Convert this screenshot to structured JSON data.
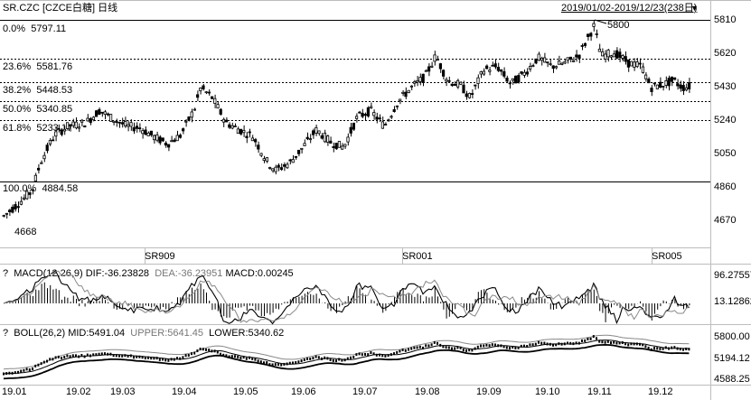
{
  "header": {
    "symbol_title": "SR.CZC [CZCE白糖] 日线",
    "range": "2019/01/02-2019/12/23(238日)",
    "range_arrow": "▼"
  },
  "main_panel": {
    "right_axis": [
      "5810",
      "5620",
      "5430",
      "5240",
      "5050",
      "4860",
      "4670"
    ],
    "fib_levels": [
      {
        "pct": "0.0%",
        "value": "5797.11"
      },
      {
        "pct": "23.6%",
        "value": "5581.76"
      },
      {
        "pct": "38.2%",
        "value": "5448.53"
      },
      {
        "pct": "50.0%",
        "value": "5340.85"
      },
      {
        "pct": "61.8%",
        "value": "5233.17"
      },
      {
        "pct": "100.0%",
        "value": "4884.58"
      }
    ],
    "high_label": "5800",
    "low_label": "4668",
    "contracts": [
      "SR909",
      "SR001",
      "SR005"
    ]
  },
  "macd_panel": {
    "question": "?",
    "name": "MACD(12,26,9)",
    "dif": "DIF:-36.23828",
    "dea": "DEA:-36.23951",
    "macd": "MACD:0.00245",
    "right_axis": [
      "96.27557",
      "13.12862"
    ]
  },
  "boll_panel": {
    "question": "?",
    "name": "BOLL(26,2)",
    "mid": "MID:5491.04",
    "upper": "UPPER:5641.45",
    "lower": "LOWER:5340.62",
    "right_axis": [
      "5800.00",
      "5194.12",
      "4588.25"
    ]
  },
  "date_axis": [
    "19.01",
    "19.02",
    "19.03",
    "19.04",
    "19.05",
    "19.06",
    "19.07",
    "19.08",
    "19.09",
    "19.10",
    "19.11",
    "19.12"
  ],
  "colors": {
    "grid": "#bdbdbd",
    "candle": "#000000",
    "sub_line": "#555555",
    "fib_dotted": "#000000"
  }
}
